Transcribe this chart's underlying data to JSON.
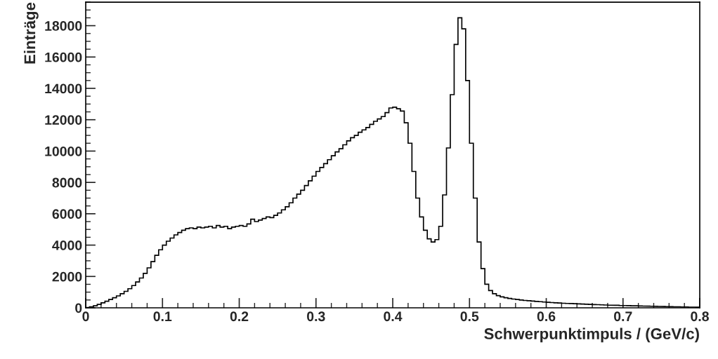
{
  "chart_data": {
    "type": "histogram",
    "xlabel": "Schwerpunktimpuls / (GeV/c)",
    "ylabel": "Einträge",
    "color": "#000000",
    "bins": [
      0,
      0.005,
      0.01,
      0.015,
      0.02,
      0.025,
      0.03,
      0.035,
      0.04,
      0.045,
      0.05,
      0.055,
      0.06,
      0.065,
      0.07,
      0.075,
      0.08,
      0.085,
      0.09,
      0.095,
      0.1,
      0.105,
      0.11,
      0.115,
      0.12,
      0.125,
      0.13,
      0.135,
      0.14,
      0.145,
      0.15,
      0.155,
      0.16,
      0.165,
      0.17,
      0.175,
      0.18,
      0.185,
      0.19,
      0.195,
      0.2,
      0.205,
      0.21,
      0.215,
      0.22,
      0.225,
      0.23,
      0.235,
      0.24,
      0.245,
      0.25,
      0.255,
      0.26,
      0.265,
      0.27,
      0.275,
      0.28,
      0.285,
      0.29,
      0.295,
      0.3,
      0.305,
      0.31,
      0.315,
      0.32,
      0.325,
      0.33,
      0.335,
      0.34,
      0.345,
      0.35,
      0.355,
      0.36,
      0.365,
      0.37,
      0.375,
      0.38,
      0.385,
      0.39,
      0.395,
      0.4,
      0.405,
      0.41,
      0.415,
      0.42,
      0.425,
      0.43,
      0.435,
      0.44,
      0.445,
      0.45,
      0.455,
      0.46,
      0.465,
      0.47,
      0.475,
      0.48,
      0.485,
      0.49,
      0.495,
      0.5,
      0.505,
      0.51,
      0.515,
      0.52,
      0.525,
      0.53,
      0.535,
      0.54,
      0.545,
      0.55,
      0.555,
      0.56,
      0.565,
      0.57,
      0.575,
      0.58,
      0.585,
      0.59,
      0.595,
      0.6,
      0.605,
      0.61,
      0.615,
      0.62,
      0.625,
      0.63,
      0.635,
      0.64,
      0.645,
      0.65,
      0.655,
      0.66,
      0.665,
      0.67,
      0.675,
      0.68,
      0.685,
      0.69,
      0.695,
      0.7,
      0.705,
      0.71,
      0.715,
      0.72,
      0.725,
      0.73,
      0.735,
      0.74,
      0.745,
      0.75,
      0.755,
      0.76,
      0.765,
      0.77,
      0.775,
      0.78,
      0.785,
      0.79,
      0.795,
      0.8
    ],
    "values": [
      20,
      60,
      130,
      220,
      320,
      420,
      530,
      640,
      760,
      900,
      1050,
      1220,
      1420,
      1650,
      1900,
      2200,
      2550,
      2950,
      3350,
      3700,
      4000,
      4250,
      4450,
      4650,
      4800,
      4950,
      5050,
      5100,
      5050,
      5150,
      5100,
      5150,
      5200,
      5100,
      5250,
      5150,
      5200,
      5050,
      5150,
      5200,
      5250,
      5200,
      5350,
      5650,
      5500,
      5600,
      5700,
      5800,
      5750,
      5900,
      6050,
      6250,
      6450,
      6700,
      7000,
      7250,
      7500,
      7800,
      8100,
      8400,
      8700,
      8950,
      9200,
      9450,
      9700,
      9950,
      10150,
      10400,
      10650,
      10850,
      11000,
      11200,
      11350,
      11500,
      11700,
      11900,
      12050,
      12200,
      12450,
      12750,
      12800,
      12700,
      12550,
      11800,
      10500,
      8700,
      7000,
      5800,
      4950,
      4400,
      4200,
      4350,
      5200,
      7200,
      10200,
      13600,
      16800,
      18500,
      17800,
      14500,
      10500,
      7000,
      4200,
      2500,
      1500,
      1100,
      900,
      780,
      700,
      640,
      600,
      560,
      530,
      500,
      470,
      450,
      430,
      410,
      390,
      370,
      350,
      335,
      320,
      305,
      290,
      280,
      270,
      260,
      250,
      240,
      230,
      220,
      210,
      200,
      190,
      180,
      170,
      165,
      160,
      150,
      145,
      140,
      130,
      125,
      120,
      110,
      105,
      100,
      95,
      90,
      85,
      80,
      75,
      70,
      65,
      60,
      55,
      50,
      45,
      40
    ],
    "xlim": [
      0,
      0.8
    ],
    "xticks": [
      0,
      0.1,
      0.2,
      0.3,
      0.4,
      0.5,
      0.6,
      0.7,
      0.8
    ],
    "ylim": [
      0,
      19500
    ],
    "yticks": [
      0,
      2000,
      4000,
      6000,
      8000,
      10000,
      12000,
      14000,
      16000,
      18000
    ],
    "grid": false,
    "legend": false
  }
}
